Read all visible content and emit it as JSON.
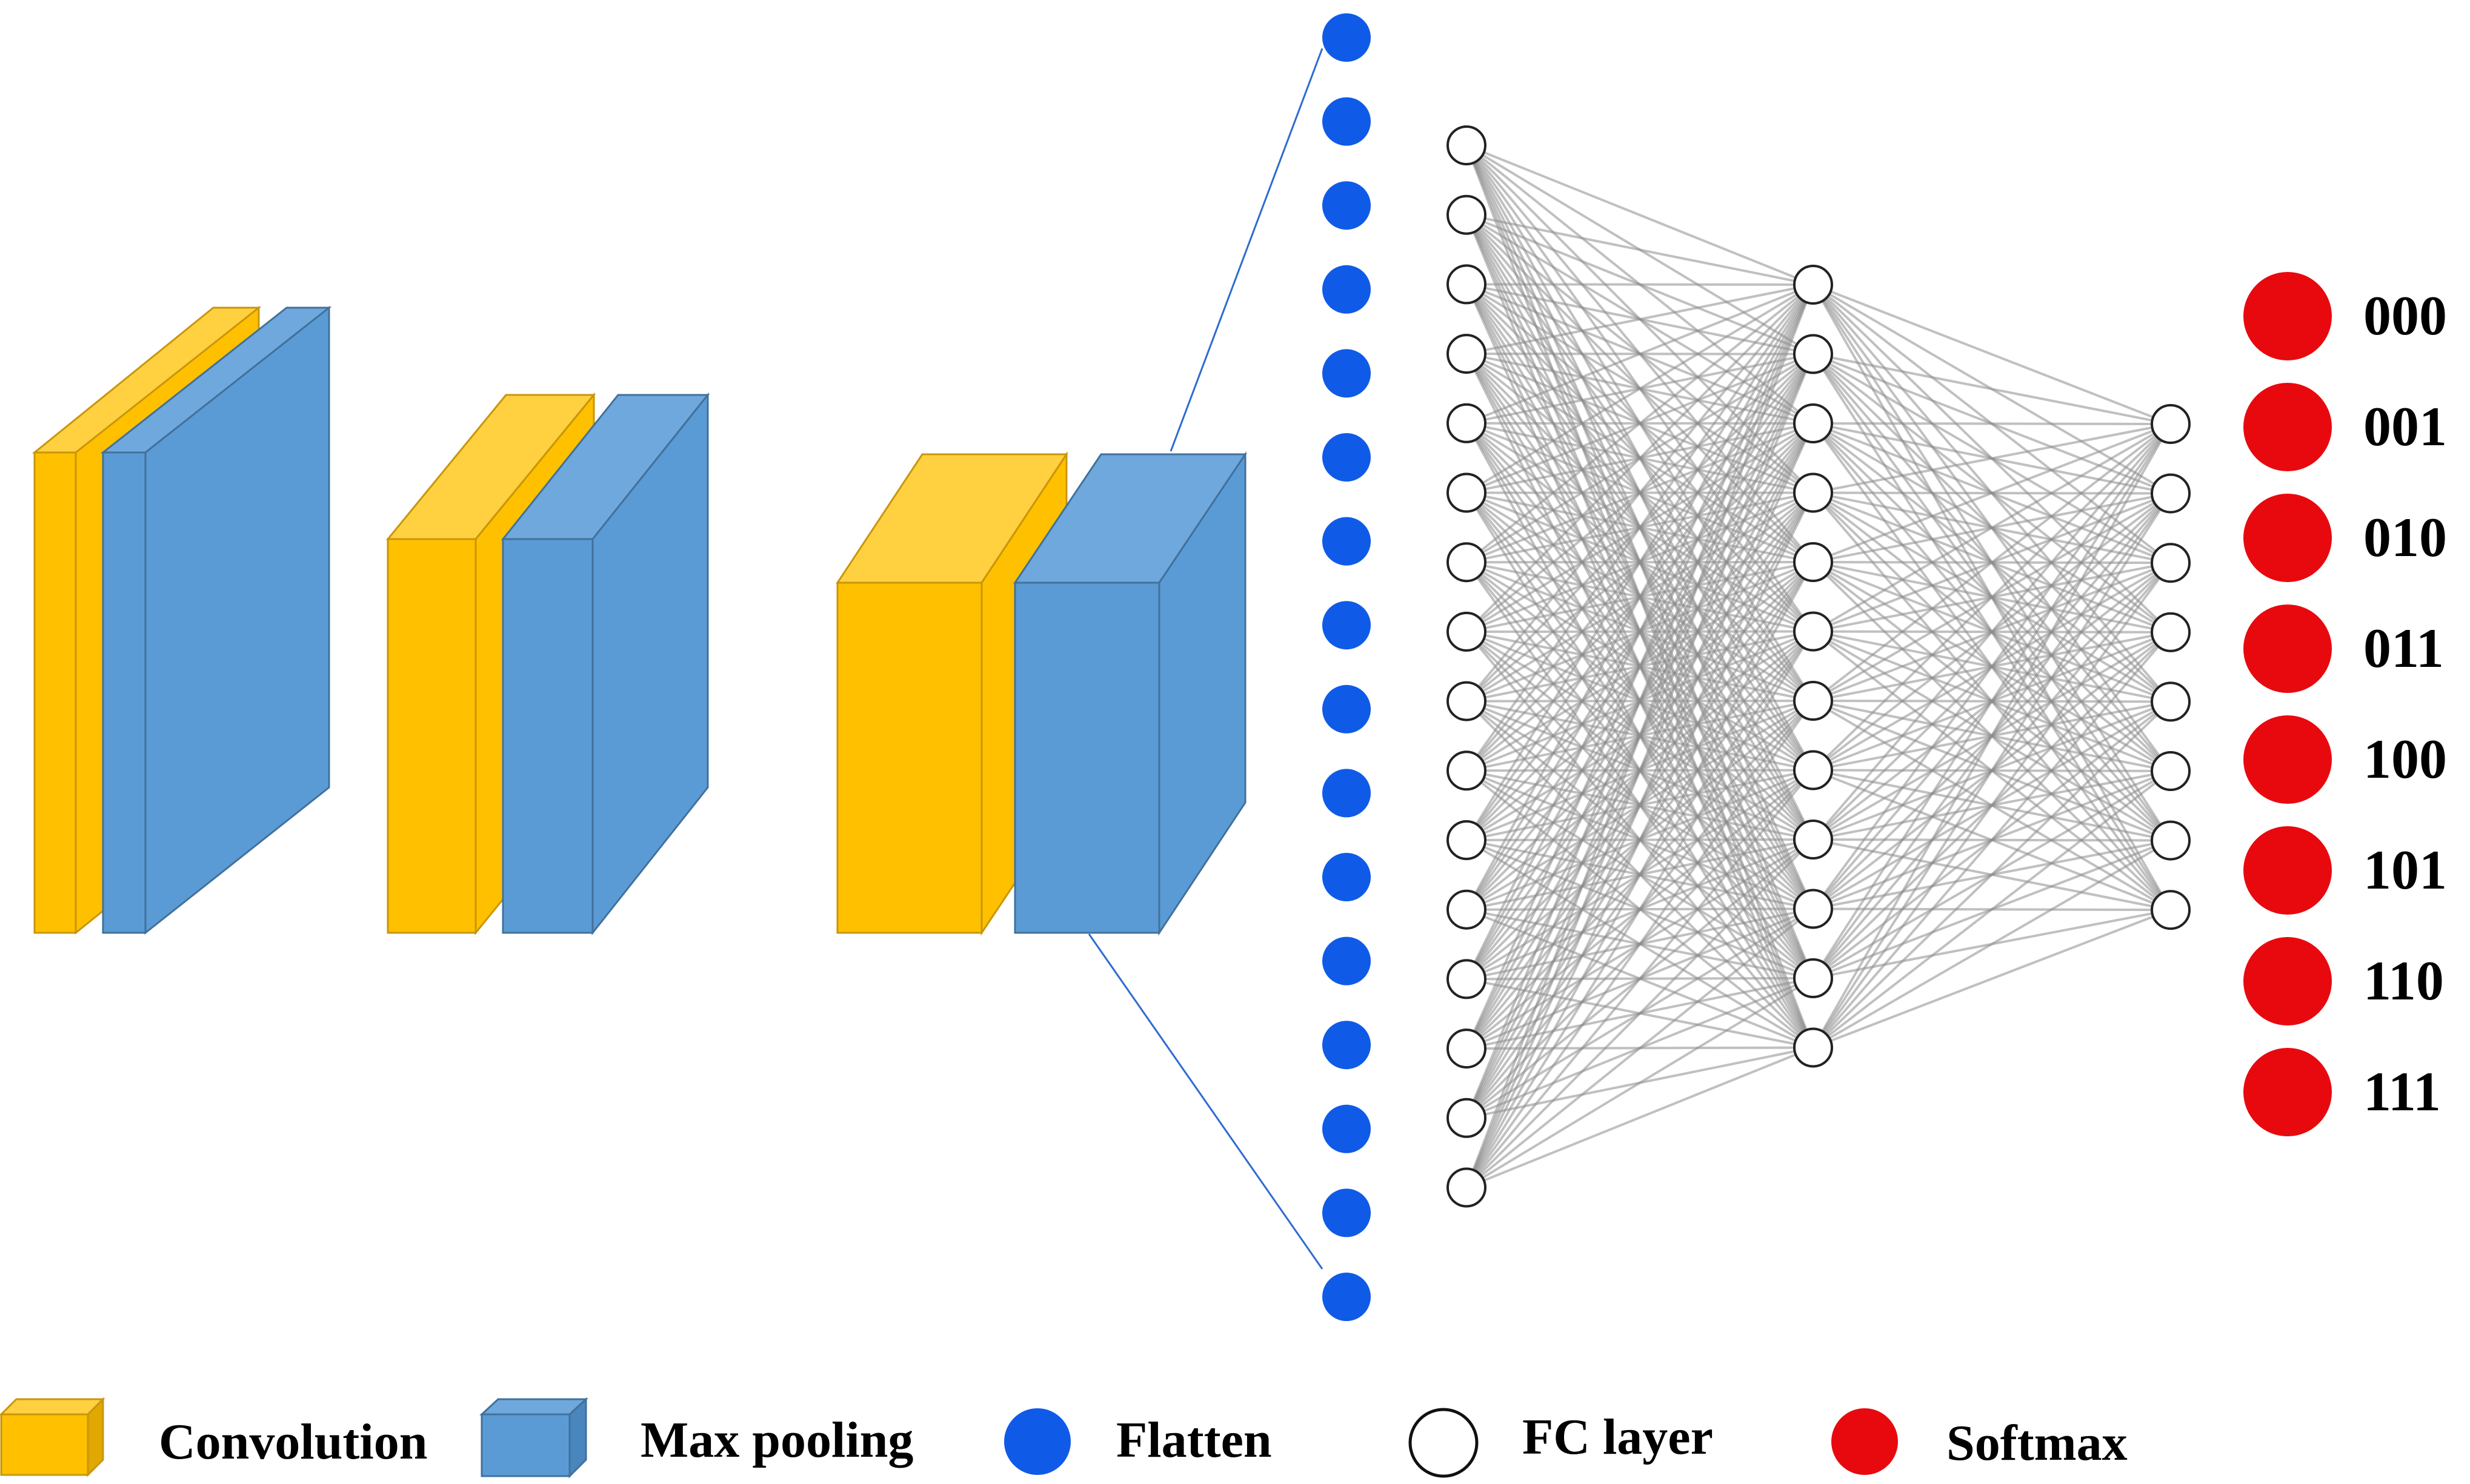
{
  "network": {
    "flatten_count": 16,
    "fc1_count": 16,
    "fc2_count": 12,
    "fc3_count": 8
  },
  "outputs": {
    "labels": [
      "000",
      "001",
      "010",
      "011",
      "100",
      "101",
      "110",
      "111"
    ]
  },
  "legend": {
    "items": [
      {
        "label": "Convolution",
        "icon": "convolution-cuboid-icon"
      },
      {
        "label": "Max pooling",
        "icon": "max-pooling-cuboid-icon"
      },
      {
        "label": "Flatten",
        "icon": "blue-circle-icon"
      },
      {
        "label": "FC layer",
        "icon": "white-circle-icon"
      },
      {
        "label": "Softmax",
        "icon": "red-circle-icon"
      }
    ]
  },
  "colors": {
    "convolution": "#FFC000",
    "convolution_edge": "#C9960A",
    "max_pooling": "#5B9BD5",
    "max_pooling_edge": "#41719C",
    "flatten": "#0F5BE8",
    "fc_fill": "#FFFFFF",
    "fc_stroke": "#222222",
    "softmax": "#E8090F",
    "connection": "#8C8C8C"
  }
}
